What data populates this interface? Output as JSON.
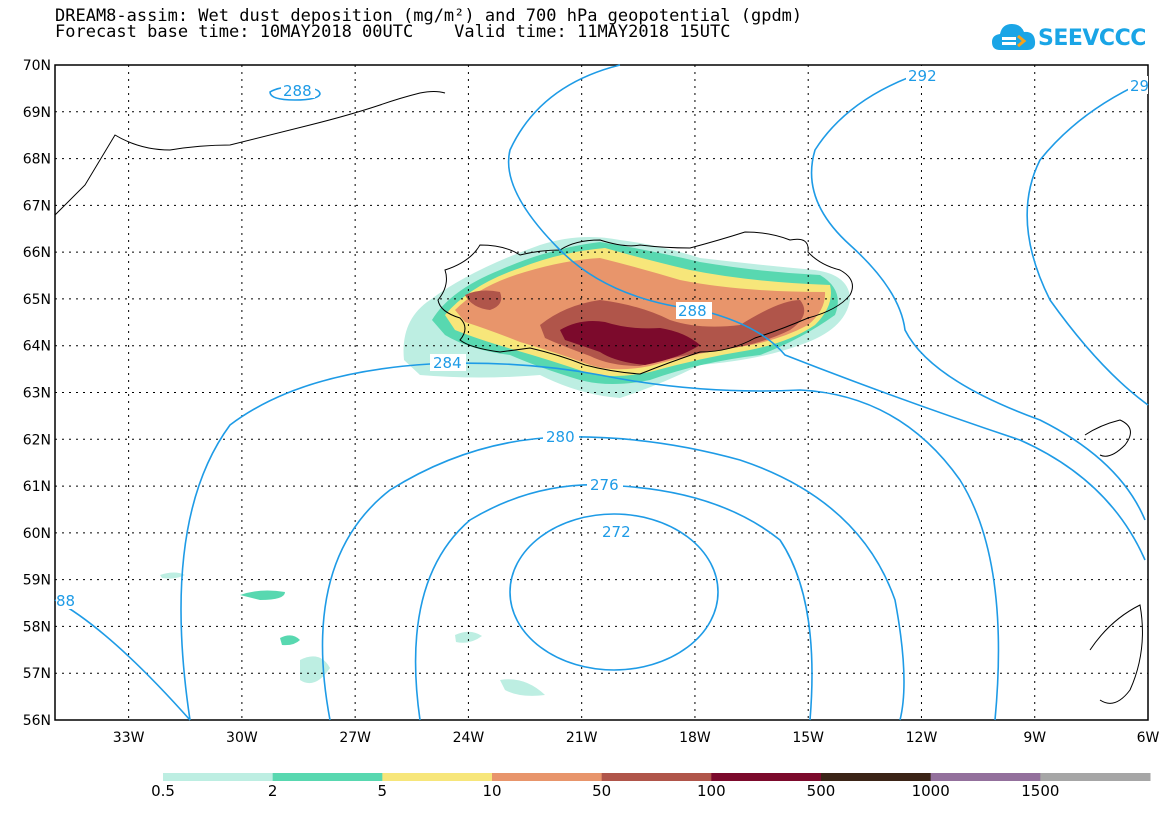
{
  "title": {
    "line1": "DREAM8-assim: Wet dust deposition (mg/m²) and 700 hPa geopotential (gpdm)",
    "line2": "Forecast base time: 10MAY2018 00UTC    Valid time: 11MAY2018 15UTC"
  },
  "logo": {
    "text": "SEEVCCC",
    "icon": "cloud-icon"
  },
  "map": {
    "lat_labels": [
      "70N",
      "69N",
      "68N",
      "67N",
      "66N",
      "65N",
      "64N",
      "63N",
      "62N",
      "61N",
      "60N",
      "59N",
      "58N",
      "57N",
      "56N"
    ],
    "lon_labels": [
      "33W",
      "30W",
      "27W",
      "24W",
      "21W",
      "18W",
      "15W",
      "12W",
      "9W",
      "6W"
    ],
    "region": "Iceland",
    "lat_range": [
      56,
      70
    ],
    "lon_range": [
      -35,
      -6
    ]
  },
  "contours": {
    "color": "#1e9be6",
    "labels": [
      "288",
      "292",
      "29",
      "288",
      "284",
      "280",
      "276",
      "272",
      "88"
    ]
  },
  "colorbar": {
    "labels": [
      "0.5",
      "2",
      "5",
      "10",
      "50",
      "100",
      "500",
      "1000",
      "1500"
    ],
    "colors": [
      "#bdeee2",
      "#58d8b0",
      "#f7e67a",
      "#e8956b",
      "#b0554a",
      "#7c0a2c",
      "#3b2417",
      "#93709c",
      "#a6a6a6"
    ]
  }
}
